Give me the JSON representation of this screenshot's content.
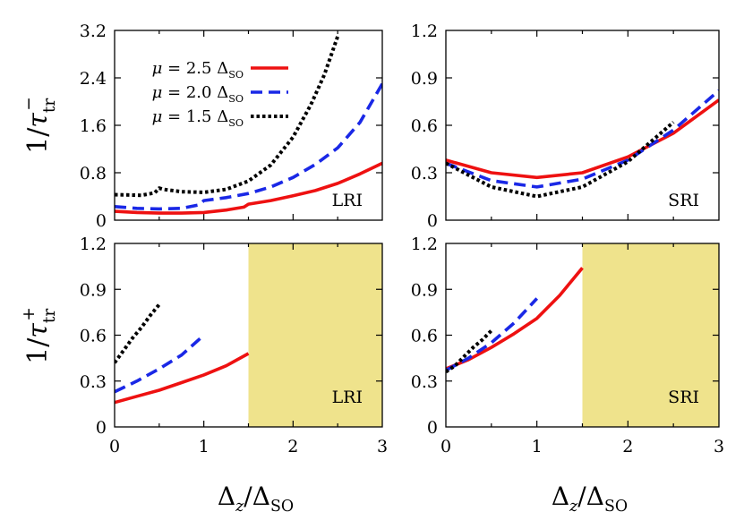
{
  "colors": {
    "mu25": "#ee1111",
    "mu20": "#1a28e6",
    "mu15": "#000000",
    "shade": "#efe38c"
  },
  "legend": [
    {
      "mu": "2.5",
      "style": "solid"
    },
    {
      "mu": "2.0",
      "style": "dashed"
    },
    {
      "mu": "1.5",
      "style": "dotted"
    }
  ],
  "chart_data": [
    {
      "type": "line",
      "panel": "top-left",
      "ylabel": "1/τ_tr^-",
      "xlabel": "",
      "annotation": "LRI",
      "xlim": [
        0,
        3
      ],
      "ylim": [
        0,
        3.2
      ],
      "xticks": [],
      "yticks": [
        "0",
        "0.8",
        "1.6",
        "2.4",
        "3.2"
      ],
      "legend_position": "top-left",
      "series": [
        {
          "mu": "2.5",
          "x": [
            0,
            0.25,
            0.5,
            0.75,
            1.0,
            1.25,
            1.45,
            1.5,
            1.75,
            2.0,
            2.25,
            2.5,
            2.75,
            3.0
          ],
          "y": [
            0.15,
            0.13,
            0.12,
            0.12,
            0.13,
            0.17,
            0.22,
            0.27,
            0.33,
            0.41,
            0.5,
            0.62,
            0.78,
            0.96
          ]
        },
        {
          "mu": "2.0",
          "x": [
            0,
            0.25,
            0.5,
            0.75,
            0.95,
            1.0,
            1.25,
            1.5,
            1.75,
            2.0,
            2.25,
            2.5,
            2.75,
            3.0
          ],
          "y": [
            0.23,
            0.2,
            0.19,
            0.2,
            0.26,
            0.33,
            0.38,
            0.45,
            0.56,
            0.72,
            0.94,
            1.22,
            1.65,
            2.3
          ]
        },
        {
          "mu": "1.5",
          "x": [
            0,
            0.3,
            0.45,
            0.5,
            0.55,
            0.75,
            1.0,
            1.25,
            1.5,
            1.75,
            2.0,
            2.2,
            2.35,
            2.5
          ],
          "y": [
            0.43,
            0.42,
            0.46,
            0.54,
            0.52,
            0.48,
            0.47,
            0.52,
            0.66,
            0.93,
            1.4,
            1.95,
            2.45,
            3.1
          ]
        }
      ]
    },
    {
      "type": "line",
      "panel": "top-right",
      "ylabel": "",
      "xlabel": "",
      "annotation": "SRI",
      "xlim": [
        0,
        3
      ],
      "ylim": [
        0,
        1.2
      ],
      "xticks": [],
      "yticks": [
        "0",
        "0.3",
        "0.6",
        "0.9",
        "1.2"
      ],
      "series": [
        {
          "mu": "2.5",
          "x": [
            0,
            0.5,
            1.0,
            1.5,
            2.0,
            2.5,
            3.0
          ],
          "y": [
            0.38,
            0.3,
            0.27,
            0.3,
            0.4,
            0.55,
            0.76
          ]
        },
        {
          "mu": "2.0",
          "x": [
            0,
            0.5,
            1.0,
            1.5,
            2.0,
            2.5,
            3.0
          ],
          "y": [
            0.36,
            0.25,
            0.21,
            0.26,
            0.38,
            0.57,
            0.82
          ]
        },
        {
          "mu": "1.5",
          "x": [
            0,
            0.5,
            1.0,
            1.5,
            2.0,
            2.5
          ],
          "y": [
            0.36,
            0.21,
            0.15,
            0.21,
            0.37,
            0.62
          ]
        }
      ]
    },
    {
      "type": "line",
      "panel": "bottom-left",
      "ylabel": "1/τ_tr^+",
      "xlabel": "Δ_z/Δ_SO",
      "annotation": "LRI",
      "xlim": [
        0,
        3
      ],
      "ylim": [
        0,
        1.2
      ],
      "xticks": [
        "0",
        "1",
        "2",
        "3"
      ],
      "yticks": [
        "0",
        "0.3",
        "0.6",
        "0.9",
        "1.2"
      ],
      "shaded_region": [
        1.5,
        3.0
      ],
      "series": [
        {
          "mu": "2.5",
          "x": [
            0,
            0.25,
            0.5,
            0.75,
            1.0,
            1.25,
            1.5
          ],
          "y": [
            0.16,
            0.2,
            0.24,
            0.29,
            0.34,
            0.4,
            0.48
          ]
        },
        {
          "mu": "2.0",
          "x": [
            0,
            0.25,
            0.5,
            0.75,
            1.0
          ],
          "y": [
            0.23,
            0.3,
            0.38,
            0.47,
            0.6
          ]
        },
        {
          "mu": "1.5",
          "x": [
            0,
            0.1,
            0.2,
            0.3,
            0.4,
            0.5
          ],
          "y": [
            0.42,
            0.5,
            0.58,
            0.65,
            0.73,
            0.8
          ]
        }
      ]
    },
    {
      "type": "line",
      "panel": "bottom-right",
      "ylabel": "",
      "xlabel": "Δ_z/Δ_SO",
      "annotation": "SRI",
      "xlim": [
        0,
        3
      ],
      "ylim": [
        0,
        1.2
      ],
      "xticks": [
        "0",
        "1",
        "2",
        "3"
      ],
      "yticks": [
        "0",
        "0.3",
        "0.6",
        "0.9",
        "1.2"
      ],
      "shaded_region": [
        1.5,
        3.0
      ],
      "series": [
        {
          "mu": "2.5",
          "x": [
            0,
            0.25,
            0.5,
            0.75,
            1.0,
            1.25,
            1.5
          ],
          "y": [
            0.38,
            0.44,
            0.52,
            0.61,
            0.71,
            0.86,
            1.04
          ]
        },
        {
          "mu": "2.0",
          "x": [
            0,
            0.25,
            0.5,
            0.75,
            1.0
          ],
          "y": [
            0.37,
            0.45,
            0.55,
            0.68,
            0.84
          ]
        },
        {
          "mu": "1.5",
          "x": [
            0,
            0.1,
            0.2,
            0.3,
            0.4,
            0.5
          ],
          "y": [
            0.36,
            0.4,
            0.46,
            0.52,
            0.57,
            0.63
          ]
        }
      ]
    }
  ]
}
